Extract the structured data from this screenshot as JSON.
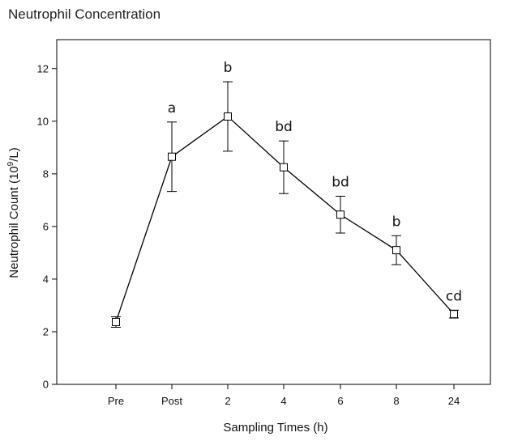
{
  "chart_data": {
    "type": "line",
    "title": "Neutrophil Concentration",
    "xlabel": "Sampling Times (h)",
    "ylabel": "Neutrophil Count (10^9/L)",
    "ylabel_prefix": "Neutrophil Count (10",
    "ylabel_sup": "9",
    "ylabel_suffix": "/L)",
    "categories": [
      "Pre",
      "Post",
      "2",
      "4",
      "6",
      "8",
      "24"
    ],
    "yticks": [
      "0",
      "2",
      "4",
      "6",
      "8",
      "10",
      "12"
    ],
    "ylim": [
      0,
      13.1
    ],
    "grid": false,
    "series": [
      {
        "values": [
          2.37,
          8.65,
          10.18,
          8.25,
          6.45,
          5.1,
          2.67
        ],
        "error": [
          0.2,
          1.32,
          1.32,
          1.0,
          0.7,
          0.55,
          0.15
        ],
        "significance": [
          "",
          "a",
          "b",
          "bd",
          "bd",
          "b",
          "cd"
        ]
      }
    ],
    "colors": {
      "line": "#000000",
      "marker_fill": "#ffffff",
      "text": "#111111"
    }
  }
}
